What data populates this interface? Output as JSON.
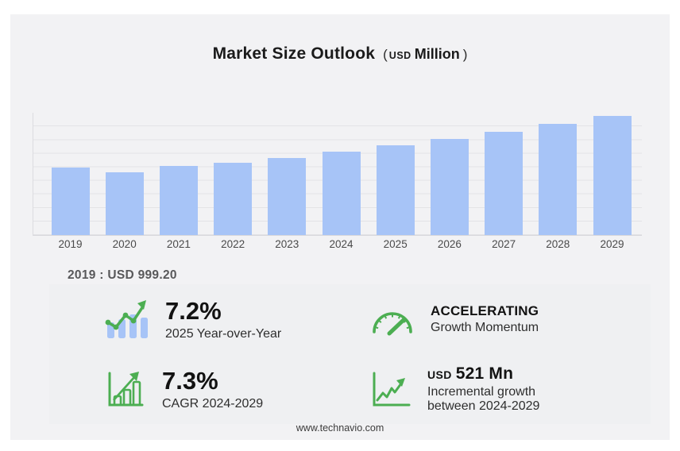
{
  "title": {
    "main": "Market Size Outlook",
    "paren_open": "(",
    "unit_currency": "USD",
    "unit_scale": "Million",
    "paren_close": ")"
  },
  "chart_data": {
    "type": "bar",
    "title": "Market Size Outlook (USD Million)",
    "categories": [
      "2019",
      "2020",
      "2021",
      "2022",
      "2023",
      "2024",
      "2025",
      "2026",
      "2027",
      "2028",
      "2029"
    ],
    "values": [
      999.2,
      925,
      1014,
      1065,
      1140,
      1233.6,
      1322.4,
      1418.9,
      1522.5,
      1633.6,
      1754.6
    ],
    "xlabel": "",
    "ylabel": "",
    "ylim": [
      0,
      1800
    ],
    "grid": true,
    "legend": false,
    "bar_color": "#a7c4f7",
    "gridline_color": "#e3e3e6"
  },
  "caption": "2019 : USD  999.20",
  "stats": [
    {
      "icon": "trend-bars-icon",
      "value": "7.2%",
      "label": "2025 Year-over-Year"
    },
    {
      "icon": "gauge-icon",
      "heading": "ACCELERATING",
      "label": "Growth Momentum"
    },
    {
      "icon": "bar-growth-icon",
      "value": "7.3%",
      "label": "CAGR 2024-2029"
    },
    {
      "icon": "line-growth-icon",
      "heading_currency": "USD",
      "heading_value": "521 Mn",
      "label_line1": "Incremental growth",
      "label_line2": "between 2024-2029"
    }
  ],
  "footer": {
    "url": "www.technavio.com"
  },
  "colors": {
    "accent_green": "#4cae52",
    "bar_blue": "#a7c4f7",
    "panel_bg": "#f2f2f4",
    "stats_bg": "#eff0f2"
  }
}
